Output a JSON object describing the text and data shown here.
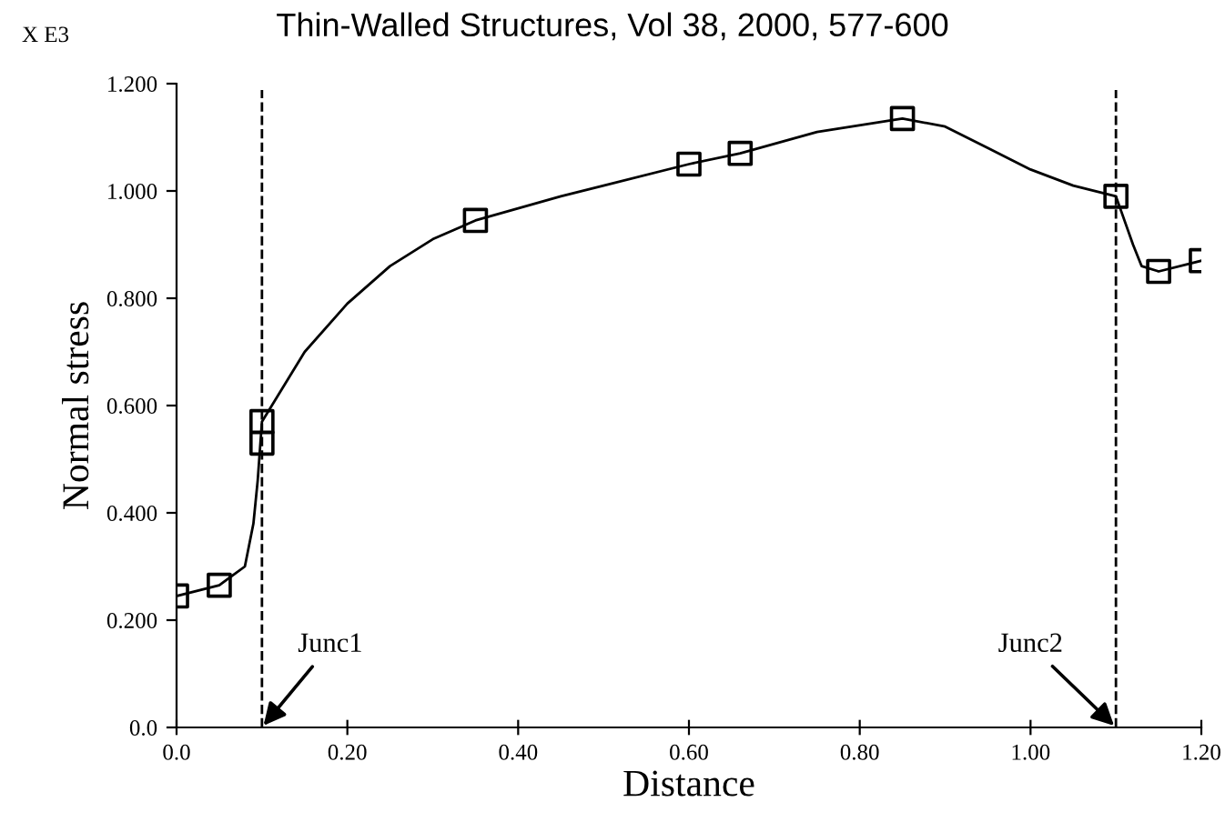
{
  "chart_data": {
    "type": "line",
    "title": "Thin-Walled Structures, Vol 38, 2000, 577-600",
    "xlabel": "Distance",
    "ylabel": "Normal stress",
    "xlim": [
      0,
      1.2
    ],
    "ylim": [
      0,
      1.2
    ],
    "xticks": [
      {
        "value": 0,
        "label": "0.0"
      },
      {
        "value": 0.2,
        "label": "0.20"
      },
      {
        "value": 0.4,
        "label": "0.40"
      },
      {
        "value": 0.6,
        "label": "0.60"
      },
      {
        "value": 0.8,
        "label": "0.80"
      },
      {
        "value": 1.0,
        "label": "1.00"
      },
      {
        "value": 1.2,
        "label": "1.20"
      }
    ],
    "yticks": [
      {
        "value": 0,
        "label": "0.0"
      },
      {
        "value": 0.2,
        "label": "0.200"
      },
      {
        "value": 0.4,
        "label": "0.400"
      },
      {
        "value": 0.6,
        "label": "0.600"
      },
      {
        "value": 0.8,
        "label": "0.800"
      },
      {
        "value": 1.0,
        "label": "1.000"
      },
      {
        "value": 1.2,
        "label": "1.200"
      }
    ],
    "grid": false,
    "series": [
      {
        "color": "#000000",
        "marker": "none",
        "line_style": "solid",
        "x": [
          0,
          0.05,
          0.08,
          0.09,
          0.095,
          0.1,
          0.15,
          0.2,
          0.25,
          0.3,
          0.35,
          0.45,
          0.5,
          0.6,
          0.66,
          0.75,
          0.85,
          0.9,
          0.95,
          1.0,
          1.05,
          1.1,
          1.12,
          1.13,
          1.15,
          1.2
        ],
        "values": [
          0.245,
          0.265,
          0.3,
          0.38,
          0.46,
          0.57,
          0.7,
          0.79,
          0.86,
          0.91,
          0.945,
          0.99,
          1.01,
          1.05,
          1.07,
          1.11,
          1.135,
          1.12,
          1.08,
          1.04,
          1.01,
          0.99,
          0.9,
          0.86,
          0.85,
          0.87
        ]
      },
      {
        "type": "scatter",
        "color": "#000000",
        "marker": "square",
        "x": [
          0,
          0.05,
          0.1,
          0.1,
          0.35,
          0.6,
          0.66,
          0.85,
          1.1,
          1.15,
          1.2
        ],
        "values": [
          0.245,
          0.265,
          0.53,
          0.57,
          0.945,
          1.05,
          1.07,
          1.135,
          0.99,
          0.85,
          0.87
        ]
      }
    ],
    "ref_lines": [
      {
        "axis": "x",
        "value": 0.1,
        "line_style": "dashed",
        "color": "#000000"
      },
      {
        "axis": "x",
        "value": 1.1,
        "line_style": "dashed",
        "color": "#000000"
      }
    ],
    "annotations": [
      "X E3",
      {
        "text": "Junc1",
        "x": 0.1,
        "y": 0
      },
      {
        "text": "Junc2",
        "x": 1.1,
        "y": 0
      }
    ]
  }
}
